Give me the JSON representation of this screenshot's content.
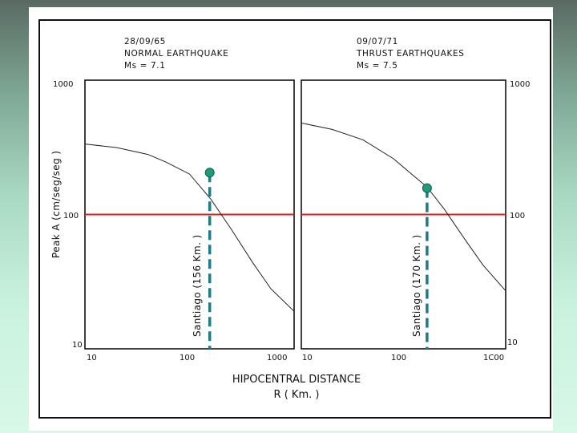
{
  "colors": {
    "background_gradient": [
      "#5a6a62",
      "#d8f8e8"
    ],
    "reference_line": "#dd2222",
    "marker": "#1f9a7a",
    "marker_dash": "#1f7a8a",
    "curve": "#222222"
  },
  "chart_data": [
    {
      "type": "line",
      "title": [
        "28/09/65",
        "NORMAL EARTHQUAKE",
        "Ms = 7.1"
      ],
      "xlabel": "HIPOCENTRAL DISTANCE",
      "xlabel_unit": "R ( Km. )",
      "ylabel": "Peak A (cm/seg/seg )",
      "x_scale": "log",
      "y_scale": "log",
      "xlim": [
        10,
        1000
      ],
      "ylim": [
        10,
        1000
      ],
      "x_ticks": [
        "10",
        "100",
        "1000"
      ],
      "y_ticks": [
        "1000",
        "100",
        "10"
      ],
      "grid": false,
      "series": [
        {
          "x": [
            10,
            20,
            40,
            60,
            100,
            160,
            250,
            400,
            600,
            1000
          ],
          "y": [
            335,
            315,
            280,
            245,
            200,
            130,
            78,
            44,
            28,
            19
          ]
        }
      ],
      "reference_y": 100,
      "marker": {
        "x": 156,
        "y": 205
      },
      "annotation": "Santiago (156 Km. )"
    },
    {
      "type": "line",
      "title": [
        "09/07/71",
        "THRUST EARTHQUAKES",
        "Ms = 7.5"
      ],
      "x_scale": "log",
      "y_scale": "log",
      "xlim": [
        10,
        1000
      ],
      "ylim": [
        10,
        1000
      ],
      "x_ticks": [
        "10",
        "100",
        "1C00"
      ],
      "y_ticks": [
        "1000",
        "100",
        "10"
      ],
      "grid": false,
      "series": [
        {
          "x": [
            10,
            20,
            40,
            80,
            120,
            170,
            250,
            400,
            600,
            1000
          ],
          "y": [
            480,
            430,
            360,
            260,
            200,
            160,
            110,
            65,
            42,
            27
          ]
        }
      ],
      "reference_y": 100,
      "marker": {
        "x": 170,
        "y": 157
      },
      "annotation": "Santiago (170 Km. )"
    }
  ]
}
